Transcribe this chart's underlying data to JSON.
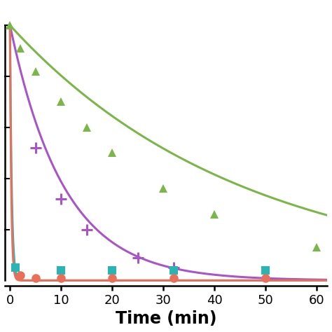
{
  "title": "",
  "xlabel": "Time (min)",
  "ylabel": "",
  "xlim": [
    -1,
    62
  ],
  "ylim": [
    -0.02,
    1.08
  ],
  "xticks": [
    0,
    10,
    20,
    30,
    40,
    50,
    60
  ],
  "background_color": "#ffffff",
  "series": [
    {
      "name": "green_triangles",
      "color": "#7ab648",
      "marker": "^",
      "marker_size": 9,
      "line_width": 2.2,
      "data_x": [
        0,
        2,
        5,
        10,
        15,
        20,
        30,
        40,
        60
      ],
      "data_y": [
        1.0,
        0.91,
        0.82,
        0.7,
        0.6,
        0.5,
        0.36,
        0.26,
        0.13
      ],
      "fit_k": 0.022
    },
    {
      "name": "purple_plus",
      "color": "#a855c8",
      "marker": "plus",
      "marker_size": 11,
      "line_width": 2.2,
      "data_x": [
        5,
        10,
        15,
        25,
        32
      ],
      "data_y": [
        0.52,
        0.32,
        0.2,
        0.09,
        0.05
      ],
      "fit_k": 0.095
    },
    {
      "name": "teal_squares",
      "color": "#2ab5b5",
      "marker": "s",
      "marker_size": 9,
      "line_width": 2.2,
      "data_x": [
        1,
        10,
        20,
        32,
        50
      ],
      "data_y": [
        0.05,
        0.04,
        0.04,
        0.04,
        0.04
      ],
      "fit_k": 3.0
    },
    {
      "name": "red_circles",
      "color": "#e8705a",
      "marker": "o",
      "marker_size": 9,
      "line_width": 2.2,
      "data_x": [
        2,
        5,
        10,
        20,
        32,
        50
      ],
      "data_y": [
        0.02,
        0.01,
        0.01,
        0.01,
        0.01,
        0.01
      ],
      "fit_k": 4.0
    }
  ]
}
